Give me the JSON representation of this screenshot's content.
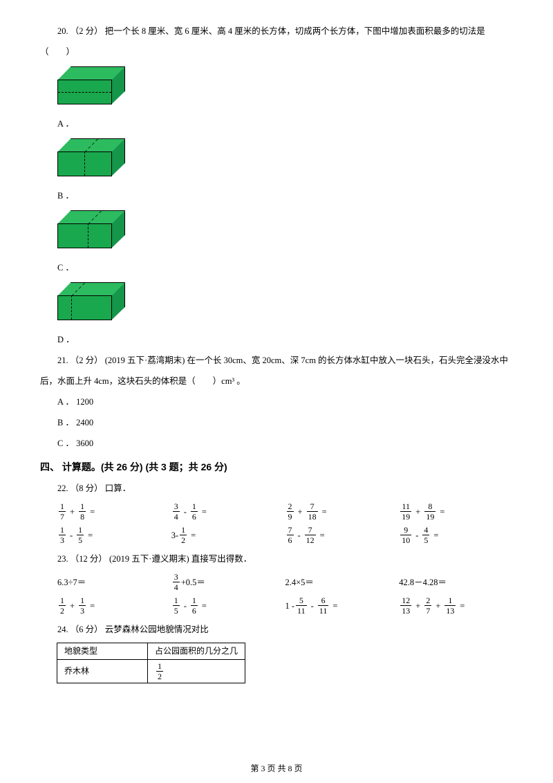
{
  "q20": {
    "text": "20. （2 分） 把一个长 8 厘米、宽 6 厘米、高 4 厘米的长方体，切成两个长方体，下图中增加表面积最多的切法是（　　）",
    "options": {
      "A": {
        "label": "A ．",
        "cut": "horizontal"
      },
      "B": {
        "label": "B ．",
        "cut": "vertical-mid"
      },
      "C": {
        "label": "C ．",
        "cut": "vertical-mid2"
      },
      "D": {
        "label": "D ．",
        "cut": "vertical-left"
      }
    },
    "cuboid_colors": {
      "top": "#2dbb60",
      "front": "#19a84d",
      "side": "#15964a",
      "edge": "#000000",
      "dash": "#000000"
    }
  },
  "q21": {
    "text": "21. （2 分） (2019 五下·荔湾期末)  在一个长 30cm、宽 20cm、深 7cm 的长方体水缸中放入一块石头，石头完全浸没水中后，水面上升 4cm，这块石头的体积是（　　）cm³ 。",
    "options": {
      "A": "A ． 1200",
      "B": "B ． 2400",
      "C": "C ． 3600"
    }
  },
  "section4_title": "四、 计算题。(共 26 分)  (共 3 题；共 26 分)",
  "q22": {
    "header": "22. （8 分） 口算．",
    "rows": [
      [
        {
          "type": "frac",
          "a": [
            1,
            7
          ],
          "op": "+",
          "b": [
            1,
            8
          ]
        },
        {
          "type": "frac",
          "a": [
            3,
            4
          ],
          "op": "-",
          "b": [
            1,
            6
          ]
        },
        {
          "type": "frac",
          "a": [
            2,
            9
          ],
          "op": "+",
          "b": [
            7,
            18
          ]
        },
        {
          "type": "frac",
          "a": [
            11,
            19
          ],
          "op": "+",
          "b": [
            8,
            19
          ]
        }
      ],
      [
        {
          "type": "frac",
          "a": [
            1,
            3
          ],
          "op": "-",
          "b": [
            1,
            5
          ]
        },
        {
          "type": "mixed",
          "left_text": "3-",
          "b": [
            1,
            2
          ]
        },
        {
          "type": "frac",
          "a": [
            7,
            6
          ],
          "op": "-",
          "b": [
            7,
            12
          ]
        },
        {
          "type": "frac",
          "a": [
            9,
            10
          ],
          "op": "-",
          "b": [
            4,
            5
          ]
        }
      ]
    ]
  },
  "q23": {
    "header": "23. （12 分） (2019 五下·遵义期末) 直接写出得数．",
    "row1": [
      {
        "text": "6.3÷7＝"
      },
      {
        "frac": [
          3,
          4
        ],
        "after": " +0.5＝"
      },
      {
        "text": "2.4×5＝"
      },
      {
        "text": "42.8－4.28＝"
      }
    ],
    "row2": [
      {
        "type": "frac",
        "a": [
          1,
          2
        ],
        "op": "+",
        "b": [
          1,
          3
        ]
      },
      {
        "type": "frac",
        "a": [
          1,
          5
        ],
        "op": "-",
        "b": [
          1,
          6
        ]
      },
      {
        "type": "triple",
        "pre": "1 -",
        "a": [
          5,
          11
        ],
        "op": "-",
        "b": [
          6,
          11
        ]
      },
      {
        "type": "triple_frac",
        "a": [
          12,
          13
        ],
        "op1": "+",
        "b": [
          2,
          7
        ],
        "op2": "+",
        "c": [
          1,
          13
        ]
      }
    ]
  },
  "q24": {
    "header": "24. （6 分） 云梦森林公园地貌情况对比",
    "table": {
      "columns": [
        "地貌类型",
        "占公园面积的几分之几"
      ],
      "rows": [
        {
          "c1": "乔木林",
          "c2": [
            1,
            2
          ]
        }
      ]
    }
  },
  "footer": "第 3 页 共 8 页"
}
